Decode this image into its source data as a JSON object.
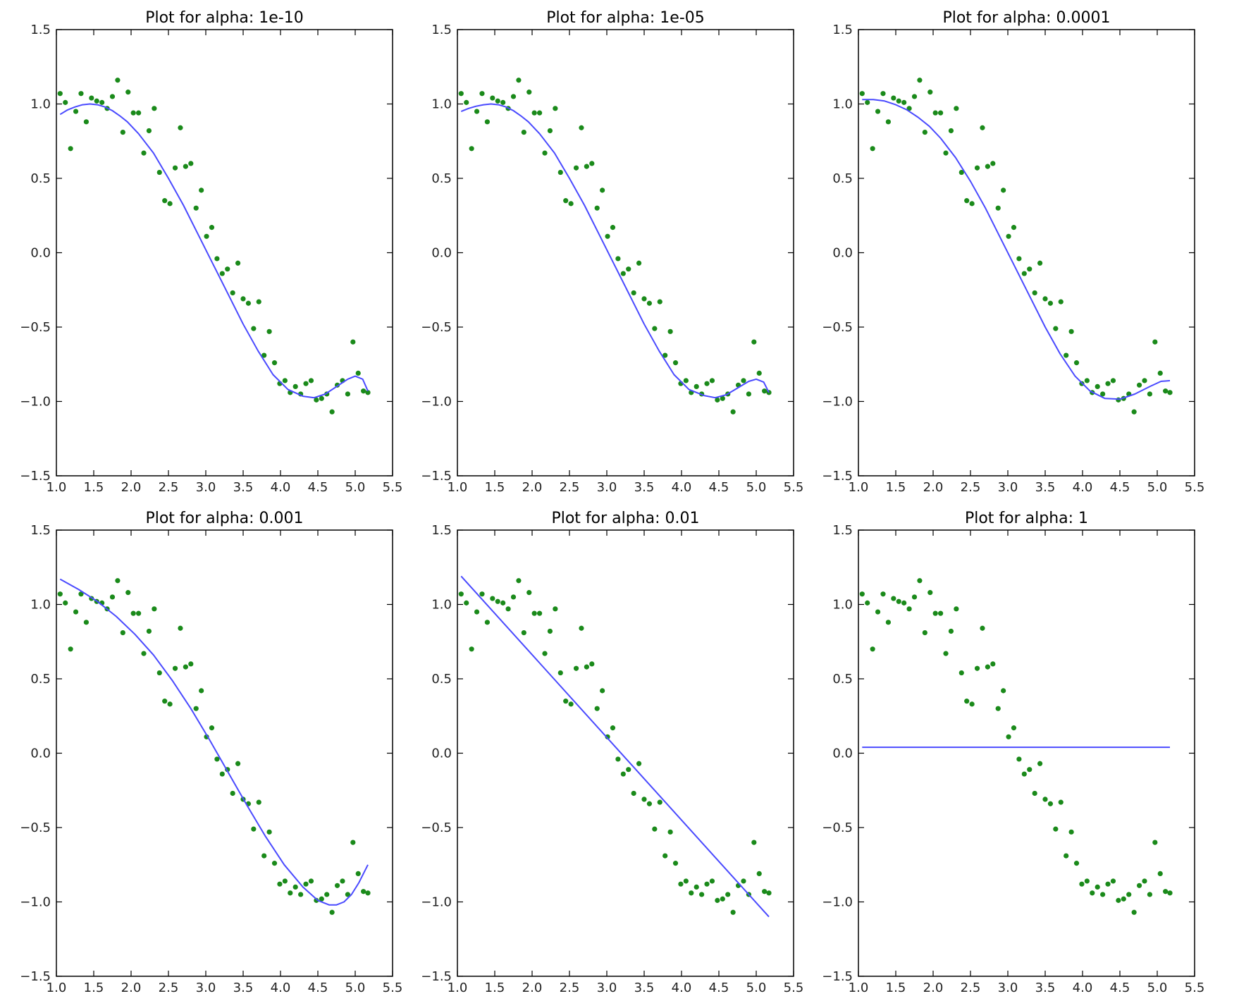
{
  "figure": {
    "colors": {
      "scatter": "#1a8a1a",
      "line": "#4a4aff",
      "frame": "#000000"
    }
  },
  "chart_data": [
    {
      "type": "scatter+line",
      "title": "Plot for alpha: 1e-10",
      "xlim": [
        1.0,
        5.5
      ],
      "ylim": [
        -1.5,
        1.5
      ],
      "xticks": [
        "1.0",
        "1.5",
        "2.0",
        "2.5",
        "3.0",
        "3.5",
        "4.0",
        "4.5",
        "5.0",
        "5.5"
      ],
      "yticks": [
        "1.5",
        "1.0",
        "0.5",
        "0.0",
        "−0.5",
        "−1.0",
        "−1.5"
      ],
      "fit_x": [
        1.05,
        1.15,
        1.25,
        1.35,
        1.45,
        1.55,
        1.65,
        1.75,
        1.85,
        1.95,
        2.1,
        2.3,
        2.5,
        2.7,
        2.9,
        3.1,
        3.3,
        3.5,
        3.7,
        3.9,
        4.1,
        4.3,
        4.45,
        4.6,
        4.75,
        4.9,
        5.0,
        5.1,
        5.17
      ],
      "fit_y": [
        0.93,
        0.96,
        0.98,
        0.995,
        1.0,
        0.995,
        0.98,
        0.955,
        0.92,
        0.88,
        0.8,
        0.67,
        0.5,
        0.32,
        0.12,
        -0.08,
        -0.28,
        -0.48,
        -0.66,
        -0.82,
        -0.92,
        -0.965,
        -0.975,
        -0.95,
        -0.9,
        -0.85,
        -0.83,
        -0.85,
        -0.93
      ]
    },
    {
      "type": "scatter+line",
      "title": "Plot for alpha: 1e-05",
      "xlim": [
        1.0,
        5.5
      ],
      "ylim": [
        -1.5,
        1.5
      ],
      "xticks": [
        "1.0",
        "1.5",
        "2.0",
        "2.5",
        "3.0",
        "3.5",
        "4.0",
        "4.5",
        "5.0",
        "5.5"
      ],
      "yticks": [
        "1.5",
        "1.0",
        "0.5",
        "0.0",
        "−0.5",
        "−1.0",
        "−1.5"
      ],
      "fit_x": [
        1.05,
        1.15,
        1.25,
        1.35,
        1.45,
        1.55,
        1.65,
        1.75,
        1.85,
        1.95,
        2.1,
        2.3,
        2.5,
        2.7,
        2.9,
        3.1,
        3.3,
        3.5,
        3.7,
        3.9,
        4.1,
        4.3,
        4.45,
        4.6,
        4.75,
        4.9,
        5.0,
        5.1,
        5.17
      ],
      "fit_y": [
        0.95,
        0.97,
        0.985,
        0.995,
        1.0,
        0.995,
        0.98,
        0.955,
        0.92,
        0.88,
        0.8,
        0.67,
        0.5,
        0.32,
        0.12,
        -0.08,
        -0.28,
        -0.48,
        -0.66,
        -0.82,
        -0.92,
        -0.96,
        -0.975,
        -0.955,
        -0.91,
        -0.865,
        -0.85,
        -0.87,
        -0.94
      ]
    },
    {
      "type": "scatter+line",
      "title": "Plot for alpha: 0.0001",
      "xlim": [
        1.0,
        5.5
      ],
      "ylim": [
        -1.5,
        1.5
      ],
      "xticks": [
        "1.0",
        "1.5",
        "2.0",
        "2.5",
        "3.0",
        "3.5",
        "4.0",
        "4.5",
        "5.0",
        "5.5"
      ],
      "yticks": [
        "1.5",
        "1.0",
        "0.5",
        "0.0",
        "−0.5",
        "−1.0",
        "−1.5"
      ],
      "fit_x": [
        1.05,
        1.2,
        1.35,
        1.5,
        1.65,
        1.8,
        1.95,
        2.1,
        2.3,
        2.5,
        2.7,
        2.9,
        3.1,
        3.3,
        3.5,
        3.7,
        3.9,
        4.1,
        4.3,
        4.5,
        4.7,
        4.9,
        5.05,
        5.17
      ],
      "fit_y": [
        1.03,
        1.03,
        1.02,
        0.995,
        0.96,
        0.91,
        0.85,
        0.77,
        0.64,
        0.48,
        0.3,
        0.1,
        -0.1,
        -0.3,
        -0.5,
        -0.68,
        -0.83,
        -0.93,
        -0.98,
        -0.985,
        -0.95,
        -0.9,
        -0.865,
        -0.86
      ]
    },
    {
      "type": "scatter+line",
      "title": "Plot for alpha: 0.001",
      "xlim": [
        1.0,
        5.5
      ],
      "ylim": [
        -1.5,
        1.5
      ],
      "xticks": [
        "1.0",
        "1.5",
        "2.0",
        "2.5",
        "3.0",
        "3.5",
        "4.0",
        "4.5",
        "5.0",
        "5.5"
      ],
      "yticks": [
        "1.5",
        "1.0",
        "0.5",
        "0.0",
        "−0.5",
        "−1.0",
        "−1.5"
      ],
      "fit_x": [
        1.05,
        1.3,
        1.55,
        1.8,
        2.05,
        2.3,
        2.55,
        2.8,
        3.05,
        3.3,
        3.55,
        3.8,
        4.05,
        4.3,
        4.5,
        4.65,
        4.75,
        4.85,
        4.95,
        5.05,
        5.17
      ],
      "fit_y": [
        1.17,
        1.1,
        1.02,
        0.92,
        0.8,
        0.66,
        0.49,
        0.3,
        0.09,
        -0.13,
        -0.35,
        -0.56,
        -0.75,
        -0.9,
        -0.99,
        -1.02,
        -1.02,
        -1.0,
        -0.95,
        -0.87,
        -0.75
      ]
    },
    {
      "type": "scatter+line",
      "title": "Plot for alpha: 0.01",
      "xlim": [
        1.0,
        5.5
      ],
      "ylim": [
        -1.5,
        1.5
      ],
      "xticks": [
        "1.0",
        "1.5",
        "2.0",
        "2.5",
        "3.0",
        "3.5",
        "4.0",
        "4.5",
        "5.0",
        "5.5"
      ],
      "yticks": [
        "1.5",
        "1.0",
        "0.5",
        "0.0",
        "−0.5",
        "−1.0",
        "−1.5"
      ],
      "fit_x": [
        1.05,
        5.17
      ],
      "fit_y": [
        1.19,
        -1.1
      ]
    },
    {
      "type": "scatter+line",
      "title": "Plot for alpha: 1",
      "xlim": [
        1.0,
        5.5
      ],
      "ylim": [
        -1.5,
        1.5
      ],
      "xticks": [
        "1.0",
        "1.5",
        "2.0",
        "2.5",
        "3.0",
        "3.5",
        "4.0",
        "4.5",
        "5.0",
        "5.5"
      ],
      "yticks": [
        "1.5",
        "1.0",
        "0.5",
        "0.0",
        "−0.5",
        "−1.0",
        "−1.5"
      ],
      "fit_x": [
        1.05,
        5.17
      ],
      "fit_y": [
        0.04,
        0.04
      ]
    }
  ],
  "scatter_data": {
    "x": [
      1.05,
      1.12,
      1.19,
      1.26,
      1.33,
      1.4,
      1.47,
      1.54,
      1.61,
      1.68,
      1.75,
      1.82,
      1.89,
      1.96,
      2.03,
      2.1,
      2.17,
      2.24,
      2.31,
      2.38,
      2.45,
      2.52,
      2.59,
      2.66,
      2.73,
      2.8,
      2.87,
      2.94,
      3.01,
      3.08,
      3.15,
      3.22,
      3.29,
      3.36,
      3.43,
      3.5,
      3.57,
      3.64,
      3.71,
      3.78,
      3.85,
      3.92,
      3.99,
      4.06,
      4.13,
      4.2,
      4.27,
      4.34,
      4.41,
      4.48,
      4.55,
      4.62,
      4.69,
      4.76,
      4.83,
      4.9,
      4.97,
      5.04,
      5.11,
      5.17
    ],
    "y": [
      1.07,
      1.01,
      0.7,
      0.95,
      1.07,
      0.88,
      1.04,
      1.02,
      1.01,
      0.97,
      1.05,
      1.16,
      0.81,
      1.08,
      0.94,
      0.94,
      0.67,
      0.82,
      0.97,
      0.54,
      0.35,
      0.33,
      0.57,
      0.84,
      0.58,
      0.6,
      0.3,
      0.42,
      0.11,
      0.17,
      -0.04,
      -0.14,
      -0.11,
      -0.27,
      -0.07,
      -0.31,
      -0.34,
      -0.51,
      -0.33,
      -0.69,
      -0.53,
      -0.74,
      -0.88,
      -0.86,
      -0.94,
      -0.9,
      -0.95,
      -0.88,
      -0.86,
      -0.99,
      -0.98,
      -0.95,
      -1.07,
      -0.89,
      -0.86,
      -0.95,
      -0.6,
      -0.81,
      -0.93,
      -0.94
    ]
  }
}
